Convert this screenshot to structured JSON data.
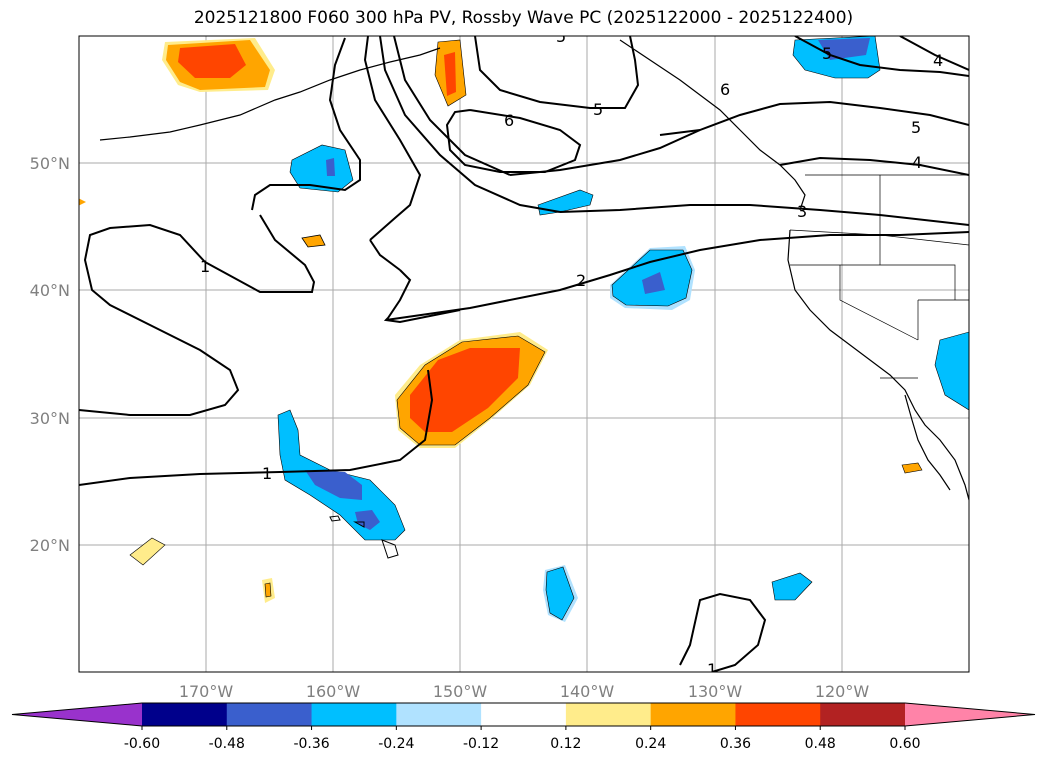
{
  "title": "2025121800 F060 300 hPa PV, Rossby Wave PC (2025122000 - 2025122400)",
  "map": {
    "lon_labels": [
      "170°W",
      "160°W",
      "150°W",
      "140°W",
      "130°W",
      "120°W"
    ],
    "lat_labels": [
      "50°N",
      "40°N",
      "30°N",
      "20°N"
    ],
    "grid_color": "#aaaaaa"
  },
  "contour_labels": [
    "1",
    "1",
    "1",
    "2",
    "3",
    "4",
    "4",
    "5",
    "5",
    "5",
    "5",
    "6",
    "6"
  ],
  "colorbar": {
    "tick_labels": [
      "-0.60",
      "-0.48",
      "-0.36",
      "-0.24",
      "-0.12",
      "0.12",
      "0.24",
      "0.36",
      "0.48",
      "0.60"
    ],
    "colors": [
      "#9932cc",
      "#00008b",
      "#3a5fcd",
      "#00bfff",
      "#b0e2ff",
      "#ffffff",
      "#ffec8b",
      "#ffa500",
      "#ff4500",
      "#b22222",
      "#ff83a8"
    ]
  }
}
